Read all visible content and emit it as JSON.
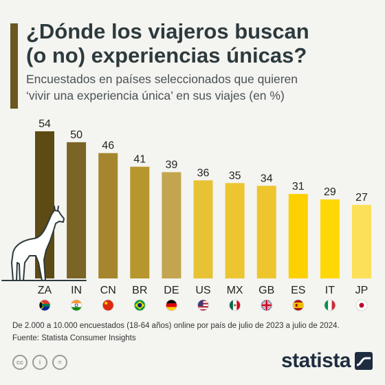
{
  "header": {
    "title_line1": "¿Dónde los viajeros buscan",
    "title_line2": "(o no) experiencias únicas?",
    "subtitle_line1": "Encuestados en países seleccionados que quieren",
    "subtitle_line2": "‘vivir una experiencia única’ en sus viajes (en %)"
  },
  "chart_data": {
    "type": "bar",
    "title": "¿Dónde los viajeros buscan (o no) experiencias únicas?",
    "subtitle": "Encuestados en países seleccionados que quieren ‘vivir una experiencia única’ en sus viajes (en %)",
    "categories": [
      "ZA",
      "IN",
      "CN",
      "BR",
      "DE",
      "US",
      "MX",
      "GB",
      "ES",
      "IT",
      "JP"
    ],
    "values": [
      54,
      50,
      46,
      41,
      39,
      36,
      35,
      34,
      31,
      29,
      27
    ],
    "colors": [
      "#5e4a14",
      "#7a6426",
      "#a5862e",
      "#b8962e",
      "#c3a550",
      "#e7c234",
      "#edc530",
      "#efc52e",
      "#fdd000",
      "#fed707",
      "#fce05a"
    ],
    "flags": [
      "flag-za",
      "flag-in",
      "flag-cn",
      "flag-br",
      "flag-de",
      "flag-us",
      "flag-mx",
      "flag-gb",
      "flag-es",
      "flag-it",
      "flag-jp"
    ],
    "ylim": [
      0,
      60
    ],
    "grid": false,
    "legend": "none",
    "decoration": "giraffe-icon"
  },
  "footer": {
    "note": "De 2.000 a 10.000 encuestados (18-64 años) online por país de julio de 2023 a julio de 2024.",
    "source": "Fuente: Statista Consumer Insights",
    "license_icons": [
      "cc",
      "i",
      "="
    ],
    "brand": "statista"
  }
}
